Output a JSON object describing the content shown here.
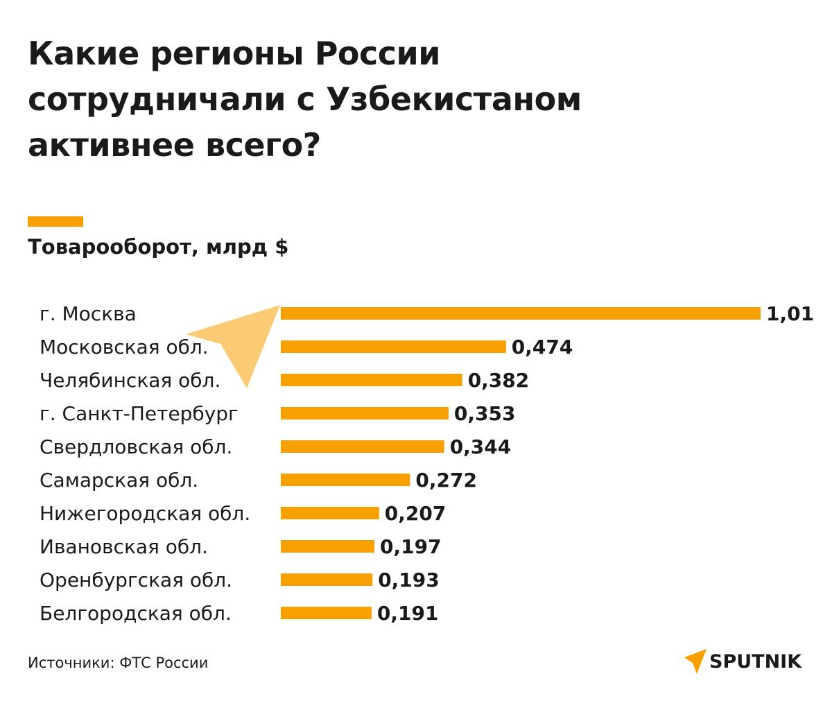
{
  "title_lines": [
    "Какие регионы России",
    "сотрудничали с Узбекистаном",
    "активнее всего?"
  ],
  "subtitle": "Товарооборот, млрд $",
  "source": "Источники: ФТС России",
  "brand": {
    "name": "SPUTNIK",
    "icon": "sputnik-logo-icon",
    "color": "#f7a000"
  },
  "watermark": "SPUTNIK",
  "colors": {
    "bar": "#f7a000",
    "text": "#1a1a1a",
    "accent": "#f7a000"
  },
  "chart_data": {
    "type": "bar",
    "orientation": "horizontal",
    "title": "Какие регионы России сотрудничали с Узбекистаном активнее всего?",
    "ylabel": "Товарооборот, млрд $",
    "categories": [
      "г. Москва",
      "Московская обл.",
      "Челябинская обл.",
      "г. Санкт-Петербург",
      "Свердловская обл.",
      "Самарская обл.",
      "Нижегородская обл.",
      "Ивановская обл.",
      "Оренбургская обл.",
      "Белгородская обл."
    ],
    "values": [
      1.01,
      0.474,
      0.382,
      0.353,
      0.344,
      0.272,
      0.207,
      0.197,
      0.193,
      0.191
    ],
    "value_labels": [
      "1,01",
      "0,474",
      "0,382",
      "0,353",
      "0,344",
      "0,272",
      "0,207",
      "0,197",
      "0,193",
      "0,191"
    ],
    "xlim": [
      0,
      1.01
    ],
    "grid": false,
    "legend": "none"
  }
}
